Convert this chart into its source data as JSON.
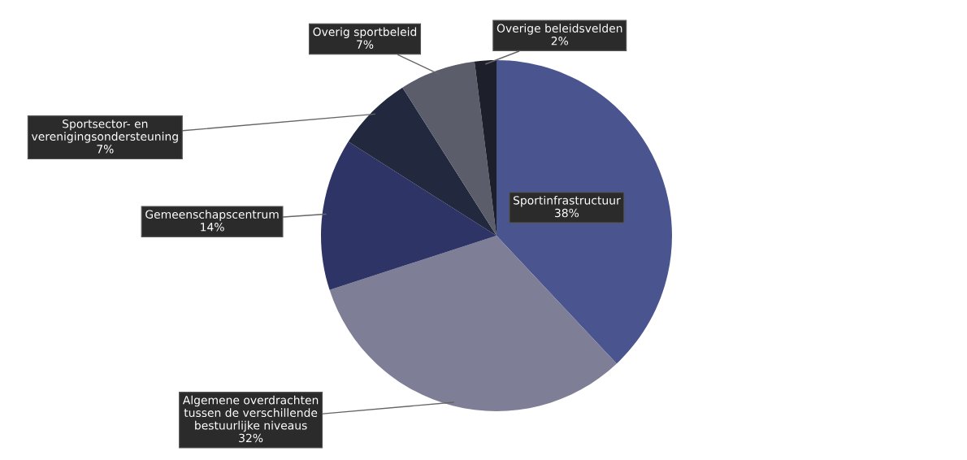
{
  "chart_data": {
    "type": "pie",
    "categories": [
      "Sportinfrastructuur",
      "Algemene overdrachten\ntussen de verschillende\nbestuurlijke niveaus",
      "Gemeenschapscentrum",
      "Sportsector- en\nverenigingsondersteuning",
      "Overig sportbeleid",
      "Overige beleidsvelden"
    ],
    "values": [
      38,
      32,
      14,
      7,
      7,
      2
    ],
    "value_labels": [
      "38%",
      "32%",
      "14%",
      "7%",
      "7%",
      "2%"
    ],
    "colors": [
      "#4a5590",
      "#7e7f96",
      "#2e3566",
      "#22283e",
      "#5b5d6b",
      "#1d1f2a"
    ],
    "legend": false
  }
}
